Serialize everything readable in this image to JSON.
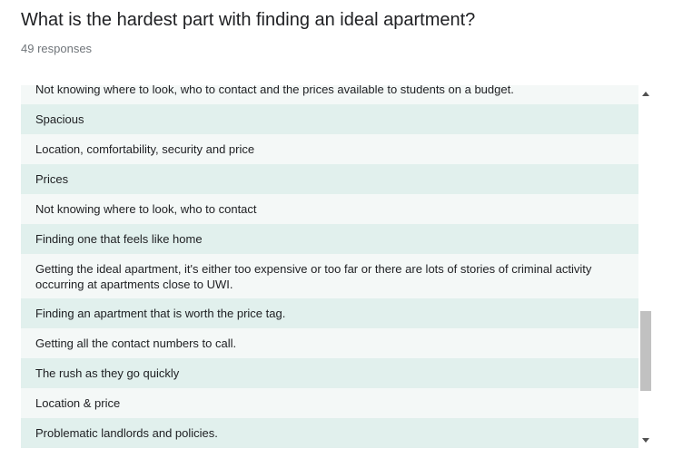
{
  "question": {
    "title": "What is the hardest part with finding an ideal apartment?",
    "response_count": "49 responses"
  },
  "responses": [
    "Not knowing where to look, who to contact and the prices available to students on a budget.",
    "Spacious",
    "Location, comfortability, security and price",
    "Prices",
    "Not knowing where to look, who to contact",
    "Finding one that feels like home",
    "Getting the ideal apartment, it's either too expensive or too far or there are lots of stories of criminal activity occurring at apartments close to UWI.",
    "Finding an apartment that is worth the price tag.",
    "Getting all the contact numbers to call.",
    "The rush as they go quickly",
    "Location & price",
    "Problematic landlords and policies."
  ],
  "colors": {
    "row_odd": "#e1f0ed",
    "row_even": "#f4f8f7",
    "scroll_thumb": "#c1c1c1"
  },
  "icons": {
    "scroll_up": "triangle-up",
    "scroll_down": "triangle-down"
  }
}
